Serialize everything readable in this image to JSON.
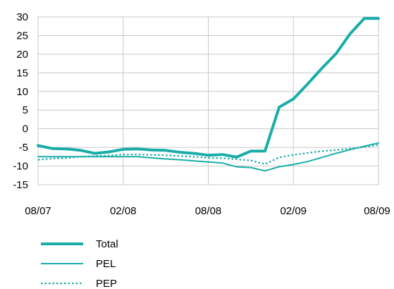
{
  "chart_data": {
    "type": "line",
    "title": "",
    "xlabel": "",
    "ylabel": "",
    "ylim": [
      -15,
      30
    ],
    "yticks": [
      30,
      25,
      20,
      15,
      10,
      5,
      0,
      -5,
      -10,
      -15
    ],
    "xticks": [
      "08/07",
      "02/08",
      "08/08",
      "02/09",
      "08/09"
    ],
    "grid": true,
    "legend_position": "bottom-left",
    "x_months": [
      "2007-08",
      "2007-09",
      "2007-10",
      "2007-11",
      "2007-12",
      "2008-01",
      "2008-02",
      "2008-03",
      "2008-04",
      "2008-05",
      "2008-06",
      "2008-07",
      "2008-08",
      "2008-09",
      "2008-10",
      "2008-11",
      "2008-12",
      "2009-01",
      "2009-02",
      "2009-03",
      "2009-04",
      "2009-05",
      "2009-06",
      "2009-07",
      "2009-08"
    ],
    "series": [
      {
        "name": "Total",
        "style": "thick",
        "color": "#1aada8",
        "values": [
          -4.5,
          -5.3,
          -5.4,
          -5.8,
          -6.6,
          -6.2,
          -5.5,
          -5.4,
          -5.7,
          -5.8,
          -6.3,
          -6.6,
          -7.1,
          -6.9,
          -7.6,
          -6.0,
          -6.0,
          5.8,
          8.0,
          12.0,
          16.2,
          20.1,
          25.5,
          29.6,
          29.6
        ]
      },
      {
        "name": "PEL",
        "style": "thin",
        "color": "#1aada8",
        "values": [
          -7.5,
          -7.5,
          -7.5,
          -7.5,
          -7.5,
          -7.5,
          -7.5,
          -7.5,
          -7.8,
          -8.1,
          -8.3,
          -8.6,
          -8.9,
          -9.2,
          -10.2,
          -10.4,
          -11.3,
          -10.2,
          -9.6,
          -8.8,
          -7.7,
          -6.6,
          -5.6,
          -4.7,
          -3.8
        ]
      },
      {
        "name": "PEP",
        "style": "dotted",
        "color": "#1aada8",
        "values": [
          -8.3,
          -8.0,
          -7.9,
          -7.5,
          -7.3,
          -7.2,
          -6.9,
          -6.9,
          -7.0,
          -7.1,
          -7.3,
          -7.5,
          -7.8,
          -7.9,
          -8.2,
          -8.5,
          -9.5,
          -7.7,
          -7.0,
          -6.5,
          -6.0,
          -5.7,
          -5.3,
          -4.9,
          -4.3
        ]
      }
    ]
  }
}
